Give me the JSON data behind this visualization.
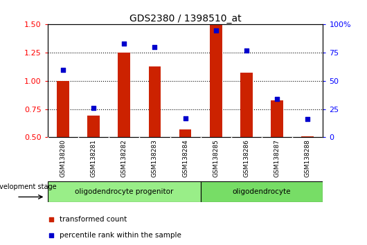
{
  "title": "GDS2380 / 1398510_at",
  "samples": [
    "GSM138280",
    "GSM138281",
    "GSM138282",
    "GSM138283",
    "GSM138284",
    "GSM138285",
    "GSM138286",
    "GSM138287",
    "GSM138288"
  ],
  "red_values": [
    1.0,
    0.69,
    1.25,
    1.13,
    0.57,
    1.5,
    1.07,
    0.83,
    0.51
  ],
  "blue_values": [
    60,
    26,
    83,
    80,
    17,
    95,
    77,
    34,
    16
  ],
  "group1_label": "oligodendrocyte progenitor",
  "group1_count": 5,
  "group2_label": "oligodendrocyte",
  "group2_count": 4,
  "dev_stage_label": "development stage",
  "legend1": "transformed count",
  "legend2": "percentile rank within the sample",
  "ylim_left": [
    0.5,
    1.5
  ],
  "ylim_right": [
    0,
    100
  ],
  "yticks_left": [
    0.5,
    0.75,
    1.0,
    1.25,
    1.5
  ],
  "yticks_right": [
    0,
    25,
    50,
    75,
    100
  ],
  "bar_color": "#cc2200",
  "dot_color": "#0000cc",
  "group1_color": "#99ee88",
  "group2_color": "#77dd66",
  "gray_color": "#cccccc",
  "plot_bg": "white",
  "bar_width": 0.4
}
